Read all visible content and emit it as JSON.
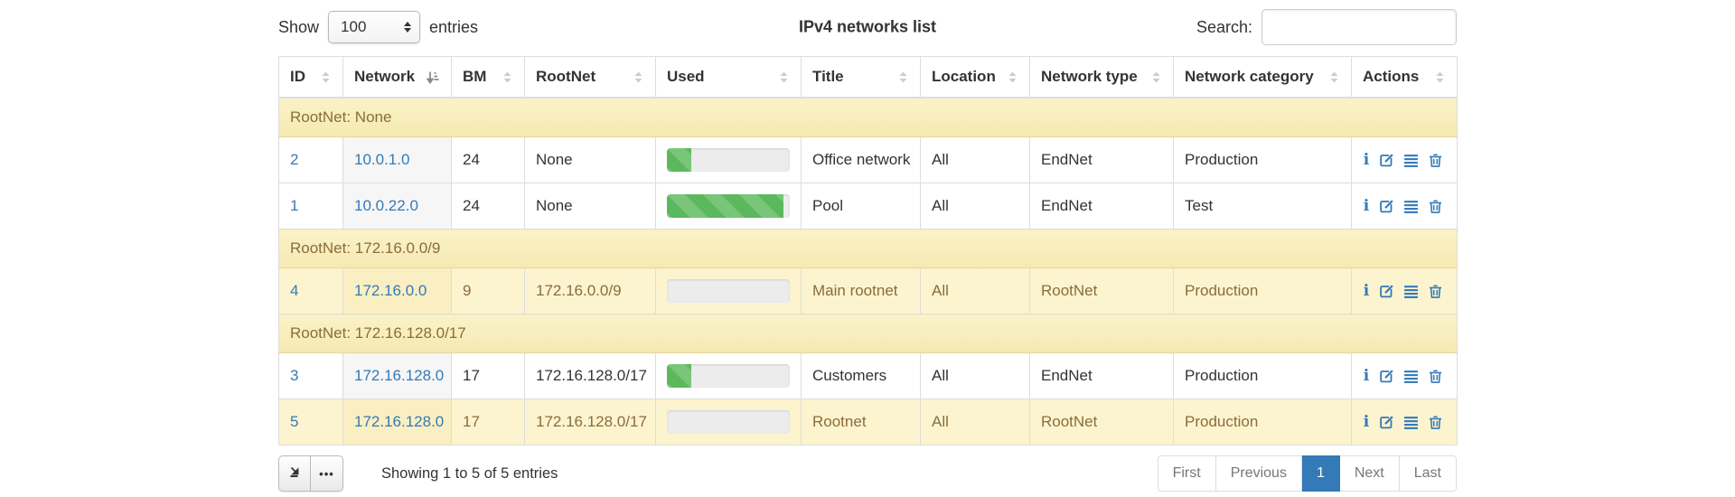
{
  "controls": {
    "show_label": "Show",
    "page_length": "100",
    "entries_label": "entries",
    "search_label": "Search:",
    "search_value": ""
  },
  "title": "IPv4 networks list",
  "table": {
    "columns": [
      {
        "label": "ID",
        "sort": "none"
      },
      {
        "label": "Network",
        "sort": "asc"
      },
      {
        "label": "BM",
        "sort": "none"
      },
      {
        "label": "RootNet",
        "sort": "none"
      },
      {
        "label": "Used",
        "sort": "none"
      },
      {
        "label": "Title",
        "sort": "none"
      },
      {
        "label": "Location",
        "sort": "none"
      },
      {
        "label": "Network type",
        "sort": "none"
      },
      {
        "label": "Network category",
        "sort": "none"
      },
      {
        "label": "Actions",
        "sort": "none"
      }
    ],
    "groups": [
      {
        "header": "RootNet: None",
        "rows": [
          {
            "id": "2",
            "network": "10.0.1.0",
            "bm": "24",
            "rootnet": "None",
            "used_pct": 20,
            "title": "Office network",
            "location": "All",
            "network_type": "EndNet",
            "network_category": "Production",
            "highlight": false,
            "actions": [
              "info",
              "edit",
              "details",
              "delete"
            ]
          },
          {
            "id": "1",
            "network": "10.0.22.0",
            "bm": "24",
            "rootnet": "None",
            "used_pct": 95,
            "title": "Pool",
            "location": "All",
            "network_type": "EndNet",
            "network_category": "Test",
            "highlight": false,
            "actions": [
              "info",
              "edit",
              "details",
              "delete"
            ]
          }
        ]
      },
      {
        "header": "RootNet: 172.16.0.0/9",
        "rows": [
          {
            "id": "4",
            "network": "172.16.0.0",
            "bm": "9",
            "rootnet": "172.16.0.0/9",
            "used_pct": 0,
            "title": "Main rootnet",
            "location": "All",
            "network_type": "RootNet",
            "network_category": "Production",
            "highlight": true,
            "actions": [
              "info",
              "edit",
              "details",
              "delete"
            ]
          }
        ]
      },
      {
        "header": "RootNet: 172.16.128.0/17",
        "rows": [
          {
            "id": "3",
            "network": "172.16.128.0",
            "bm": "17",
            "rootnet": "172.16.128.0/17",
            "used_pct": 20,
            "title": "Customers",
            "location": "All",
            "network_type": "EndNet",
            "network_category": "Production",
            "highlight": false,
            "actions": [
              "info",
              "edit",
              "details",
              "delete"
            ]
          },
          {
            "id": "5",
            "network": "172.16.128.0",
            "bm": "17",
            "rootnet": "172.16.128.0/17",
            "used_pct": 0,
            "title": "Rootnet",
            "location": "All",
            "network_type": "RootNet",
            "network_category": "Production",
            "highlight": true,
            "actions": [
              "info",
              "edit",
              "details",
              "delete"
            ]
          }
        ]
      }
    ]
  },
  "footer": {
    "ellipsis_label": "•••",
    "info": "Showing 1 to 5 of 5 entries",
    "pagination": [
      {
        "label": "First",
        "state": "disabled"
      },
      {
        "label": "Previous",
        "state": "disabled"
      },
      {
        "label": "1",
        "state": "active"
      },
      {
        "label": "Next",
        "state": "disabled"
      },
      {
        "label": "Last",
        "state": "disabled"
      }
    ]
  },
  "colors": {
    "link_blue": "#337ab7",
    "active_page_bg": "#337ab7",
    "success_green": "#5cb85c",
    "warning_row_bg": "#fcf4cf",
    "group_row_bg": "#f8eebc",
    "group_row_text": "#8a6d3b",
    "border": "#dddddd"
  }
}
